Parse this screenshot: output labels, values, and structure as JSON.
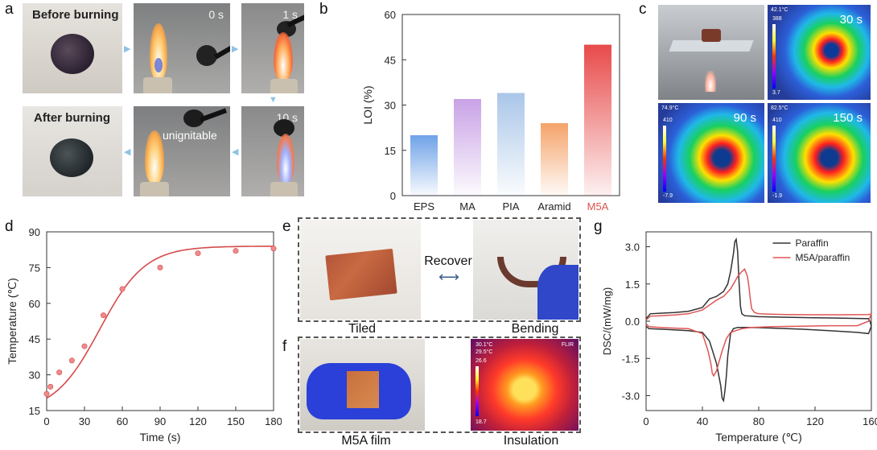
{
  "panels": {
    "a": {
      "label": "a",
      "before_text": "Before burning",
      "after_text": "After burning",
      "time_0": "0 s",
      "time_1": "1 s",
      "time_10": "10 s",
      "unignitable": "unignitable"
    },
    "b": {
      "label": "b"
    },
    "c": {
      "label": "c",
      "t30": "30 s",
      "t90": "90 s",
      "t150": "150 s",
      "readout_30": "42.1°C",
      "readout_90": "74.9°C",
      "readout_150": "82.5°C",
      "scale_30_top": "388",
      "scale_30_bot": "3.7",
      "scale_90_top": "410",
      "scale_90_bot": "-7.9",
      "scale_150_top": "410",
      "scale_150_bot": "-1.9"
    },
    "d": {
      "label": "d"
    },
    "e": {
      "label": "e",
      "recover": "Recover",
      "tiled": "Tiled",
      "bending": "Bending"
    },
    "f": {
      "label": "f",
      "film": "M5A film",
      "insulation": "Insulation",
      "readout1": "30.1°C",
      "readout2": "29.5°C",
      "scale_top": "26.6",
      "scale_bot": "18.7",
      "brand": "FLIR"
    },
    "g": {
      "label": "g"
    }
  },
  "colors": {
    "accent_red": "#d9534f",
    "m5a_label": "#d9534f",
    "arrow_blue": "#8ec3e6",
    "dark_line": "#333333"
  },
  "chart_data": [
    {
      "id": "b",
      "type": "bar",
      "categories": [
        "EPS",
        "MA",
        "PIA",
        "Aramid",
        "M5A"
      ],
      "values": [
        20,
        32,
        34,
        24,
        50
      ],
      "bar_colors": [
        "#6fa2e8",
        "#c9a2e6",
        "#a9c6e8",
        "#f5a36a",
        "#e84a4a"
      ],
      "ylabel": "LOI (%)",
      "ylim": [
        0,
        60
      ],
      "yticks": [
        0,
        15,
        30,
        45,
        60
      ]
    },
    {
      "id": "d",
      "type": "scatter",
      "x": [
        0,
        3,
        10,
        20,
        30,
        45,
        60,
        90,
        120,
        150,
        180
      ],
      "y": [
        22,
        25,
        31,
        36,
        42,
        55,
        66,
        75,
        81,
        82,
        83
      ],
      "xlabel": "Time (s)",
      "ylabel": "Temperature (℃)",
      "xlim": [
        0,
        180
      ],
      "ylim": [
        15,
        90
      ],
      "xticks": [
        0,
        30,
        60,
        90,
        120,
        150,
        180
      ],
      "yticks": [
        15,
        30,
        45,
        60,
        75,
        90
      ],
      "fit": true
    },
    {
      "id": "g",
      "type": "line",
      "xlabel": "Temperature (℃)",
      "ylabel": "DSC/(mW/mg)",
      "xlim": [
        0,
        160
      ],
      "ylim": [
        -3.6,
        3.6
      ],
      "xticks": [
        0,
        40,
        80,
        120,
        160
      ],
      "yticks": [
        -3.0,
        -1.5,
        0.0,
        1.5,
        3.0
      ],
      "ytick_labels": [
        "-3.0",
        "-1.5",
        "0.0",
        "1.5",
        "3.0"
      ],
      "legend_position": "top-right",
      "series": [
        {
          "name": "Paraffin",
          "color": "#333333",
          "x": [
            0,
            3,
            10,
            20,
            30,
            40,
            45,
            50,
            55,
            58,
            60,
            62,
            63,
            64,
            65,
            66,
            67,
            68,
            70,
            75,
            80,
            100,
            120,
            140,
            158,
            159,
            160,
            158,
            150,
            130,
            110,
            90,
            80,
            70,
            65,
            62,
            60,
            58,
            57,
            56,
            55,
            54,
            53,
            50,
            45,
            40,
            30,
            20,
            10,
            2,
            0
          ],
          "y": [
            0.1,
            0.3,
            0.32,
            0.35,
            0.4,
            0.55,
            0.9,
            1.0,
            1.2,
            1.5,
            2.0,
            2.7,
            3.2,
            3.3,
            2.8,
            1.6,
            0.6,
            0.3,
            0.22,
            0.2,
            0.18,
            0.16,
            0.14,
            0.12,
            0.1,
            0.0,
            -0.2,
            -0.5,
            -0.45,
            -0.38,
            -0.32,
            -0.28,
            -0.26,
            -0.25,
            -0.25,
            -0.3,
            -0.5,
            -1.4,
            -2.2,
            -2.8,
            -3.2,
            -3.1,
            -2.6,
            -1.7,
            -0.8,
            -0.45,
            -0.38,
            -0.35,
            -0.32,
            -0.3,
            -0.2
          ]
        },
        {
          "name": "M5A/paraffin",
          "color": "#e05555",
          "x": [
            0,
            3,
            10,
            20,
            30,
            40,
            50,
            55,
            60,
            63,
            65,
            68,
            70,
            72,
            73,
            74,
            75,
            77,
            80,
            90,
            100,
            120,
            140,
            158,
            159,
            160,
            158,
            150,
            130,
            110,
            90,
            75,
            68,
            60,
            57,
            54,
            52,
            50,
            48,
            47,
            46,
            44,
            40,
            30,
            20,
            10,
            2,
            0
          ],
          "y": [
            0.05,
            0.2,
            0.22,
            0.25,
            0.3,
            0.45,
            0.85,
            1.0,
            1.3,
            1.6,
            1.8,
            2.0,
            2.1,
            1.8,
            1.4,
            0.9,
            0.5,
            0.35,
            0.3,
            0.28,
            0.27,
            0.26,
            0.26,
            0.27,
            0.28,
            0.3,
            0.0,
            -0.18,
            -0.18,
            -0.2,
            -0.22,
            -0.25,
            -0.3,
            -0.45,
            -0.7,
            -1.2,
            -1.6,
            -2.0,
            -2.2,
            -2.1,
            -1.7,
            -1.2,
            -0.5,
            -0.3,
            -0.28,
            -0.25,
            -0.22,
            -0.1
          ]
        }
      ]
    }
  ]
}
